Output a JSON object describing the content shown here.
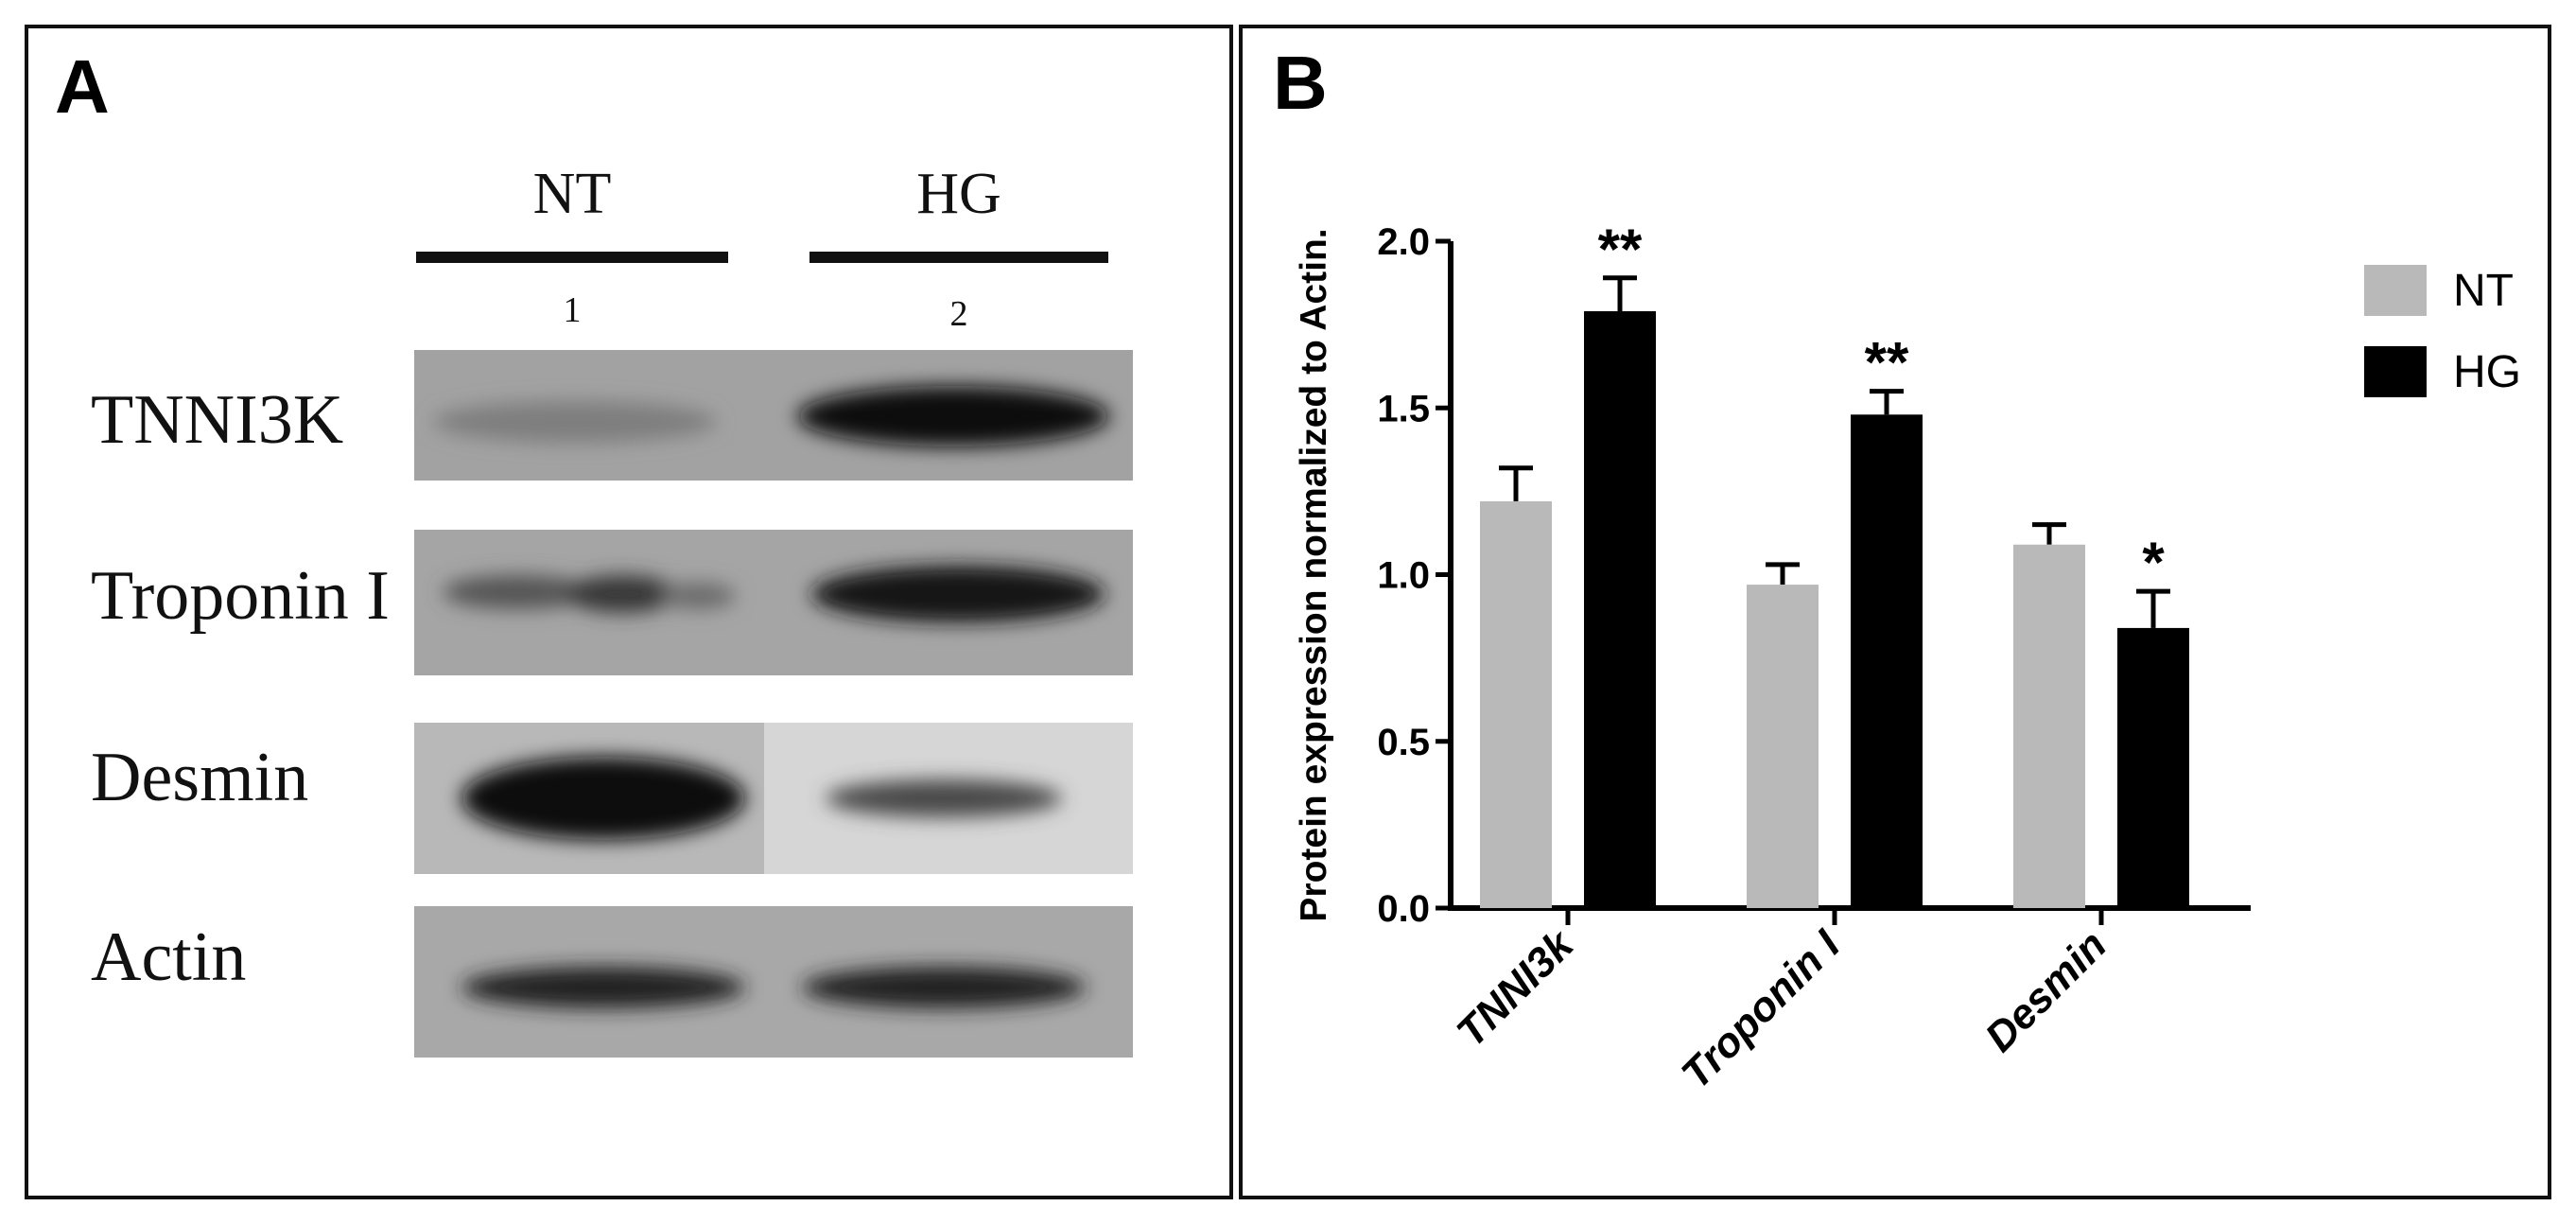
{
  "panel_a": {
    "letter": "A",
    "lane_groups": [
      {
        "label": "NT",
        "number": "1"
      },
      {
        "label": "HG",
        "number": "2"
      }
    ],
    "blots": [
      {
        "label": "TNNI3K"
      },
      {
        "label": "Troponin I"
      },
      {
        "label": "Desmin"
      },
      {
        "label": "Actin"
      }
    ]
  },
  "panel_b": {
    "letter": "B",
    "chart_data": {
      "type": "bar",
      "categories": [
        "TNNI3k",
        "Troponin I",
        "Desmin"
      ],
      "series": [
        {
          "name": "NT",
          "values": [
            1.22,
            0.97,
            1.09
          ],
          "errors": [
            0.1,
            0.06,
            0.06
          ],
          "color": "#b9b9b9"
        },
        {
          "name": "HG",
          "values": [
            1.79,
            1.48,
            0.84
          ],
          "errors": [
            0.1,
            0.07,
            0.11
          ],
          "color": "#000000"
        }
      ],
      "significance": {
        "NT": [
          "",
          "",
          ""
        ],
        "HG": [
          "**",
          "**",
          "*"
        ]
      },
      "ylabel": "Protein expression normalized to Actin.",
      "xlabel": "",
      "ylim": [
        0,
        2.0
      ],
      "yticks": [
        "0.0",
        "0.5",
        "1.0",
        "1.5",
        "2.0"
      ],
      "legend_position": "top-right",
      "grid": false
    }
  }
}
